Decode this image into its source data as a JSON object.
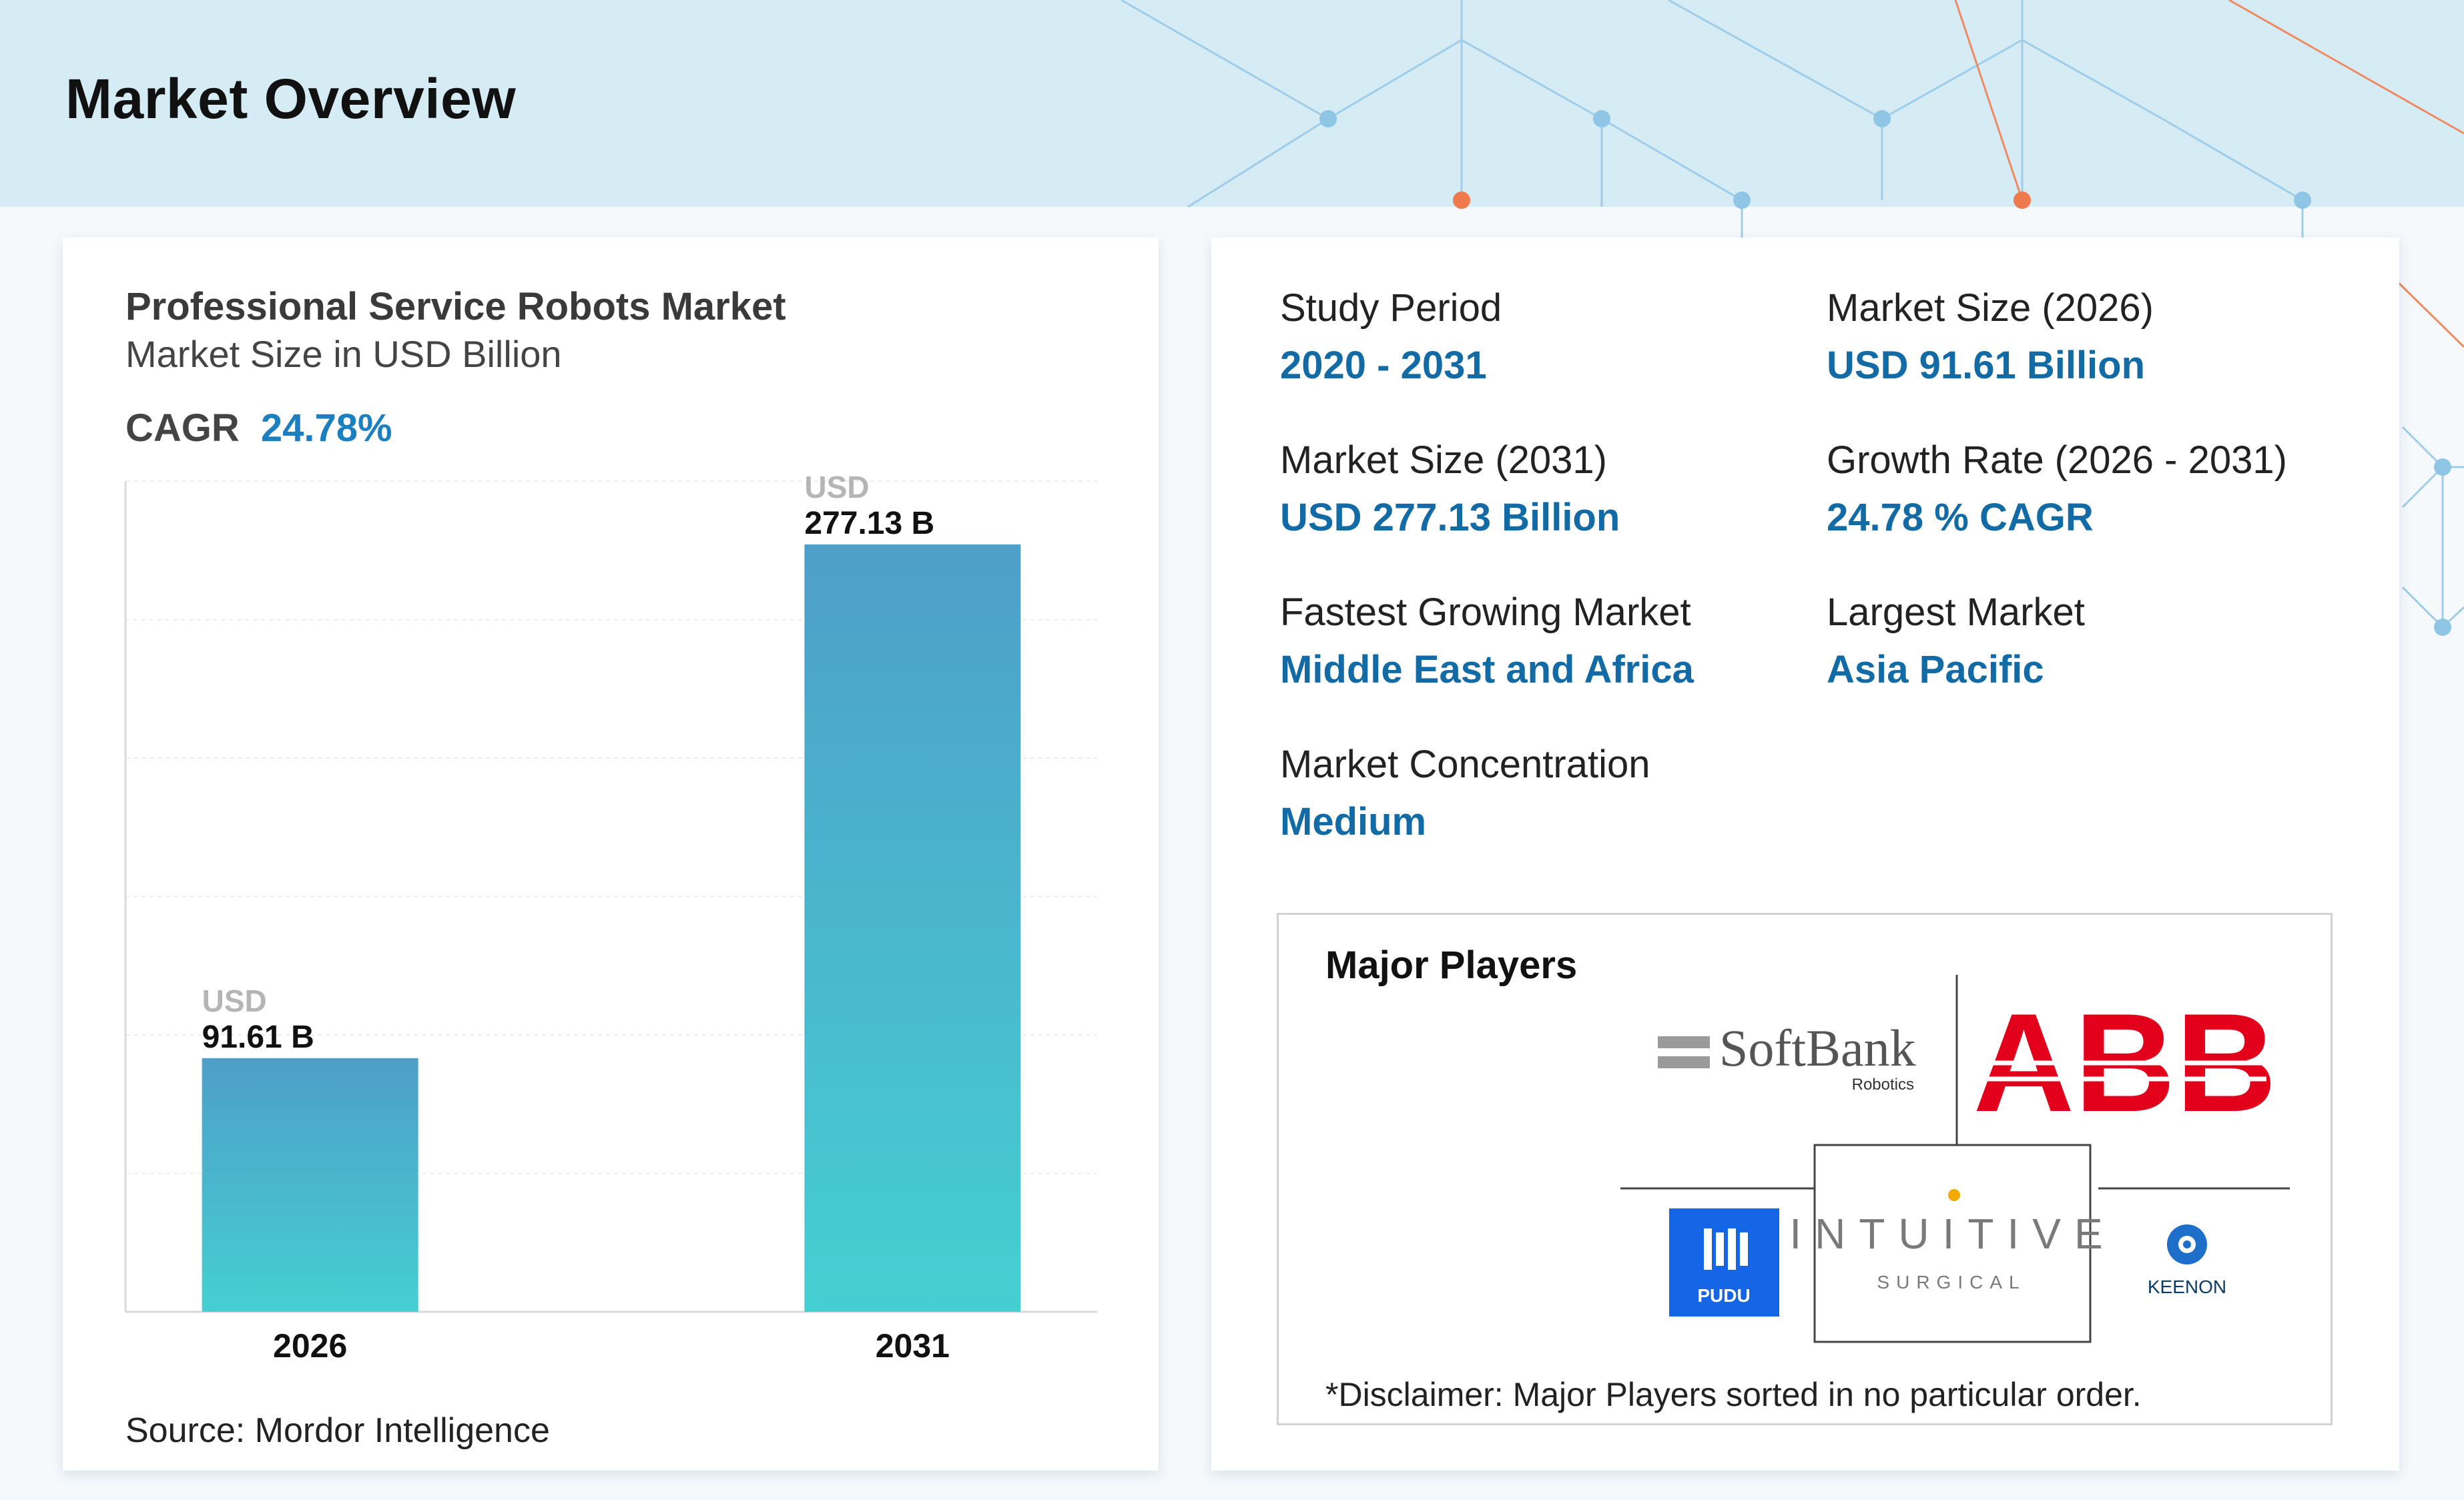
{
  "page": {
    "title": "Market Overview"
  },
  "chart_data": {
    "type": "bar",
    "title": "Professional Service Robots Market",
    "subtitle": "Market Size in USD Billion",
    "cagr_label": "CAGR",
    "cagr_value": "24.78%",
    "categories": [
      "2026",
      "2031"
    ],
    "values": [
      91.61,
      277.13
    ],
    "value_prefix": "USD",
    "value_labels": [
      "91.61 B",
      "277.13 B"
    ],
    "ylim": [
      0,
      300
    ],
    "grid": true,
    "bar_color_top": "#4e9fc9",
    "bar_color_bottom": "#45cfd2",
    "source": "Source: Mordor Intelligence"
  },
  "stats": [
    {
      "label": "Study Period",
      "value": "2020 - 2031"
    },
    {
      "label": "Market Size (2026)",
      "value": "USD 91.61 Billion"
    },
    {
      "label": "Market Size (2031)",
      "value": "USD 277.13 Billion"
    },
    {
      "label": "Growth Rate (2026 - 2031)",
      "value": "24.78 % CAGR"
    },
    {
      "label": "Fastest Growing Market",
      "value": "Middle East and Africa"
    },
    {
      "label": "Largest Market",
      "value": "Asia Pacific"
    },
    {
      "label": "Market Concentration",
      "value": "Medium"
    }
  ],
  "major_players": {
    "title": "Major Players",
    "logos": [
      {
        "name": "SoftBank",
        "sub": "Robotics",
        "icon": "softbank-logo"
      },
      {
        "name": "ABB",
        "icon": "abb-logo"
      },
      {
        "name": "PUDU",
        "icon": "pudu-logo"
      },
      {
        "name": "INTUITIVE",
        "sub": "SURGICAL",
        "icon": "intuitive-surgical-logo"
      },
      {
        "name": "KEENON",
        "icon": "keenon-logo"
      }
    ],
    "disclaimer": "*Disclaimer: Major Players sorted in no particular order."
  },
  "colors": {
    "accent": "#136ba6",
    "header_band": "#d6ecf5",
    "network_blue": "#8fc6e6",
    "network_orange": "#ef7a4e",
    "abb_red": "#e2001a",
    "pudu_blue": "#1466e6",
    "intuitive_gold": "#f2a900"
  }
}
